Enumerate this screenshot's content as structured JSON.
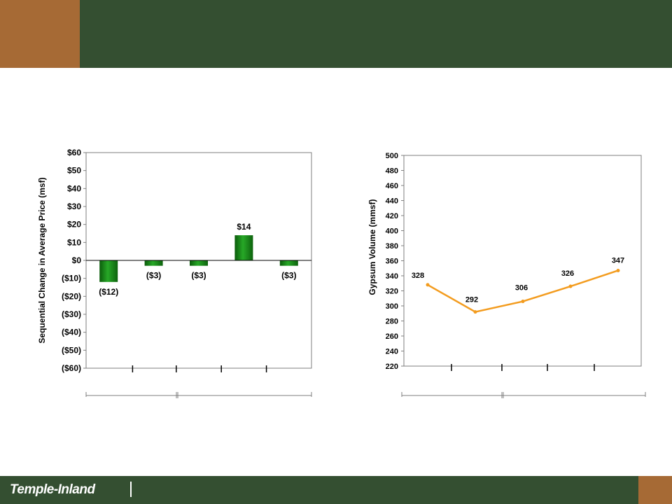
{
  "brand": {
    "logo_text": "Temple-Inland",
    "colors": {
      "header": "#344f31",
      "accent": "#a66a35"
    }
  },
  "chart_data": [
    {
      "type": "bar",
      "ylabel": "Sequential Change in Average Price (msf)",
      "ylim": [
        -60,
        60
      ],
      "yticks": [
        60,
        50,
        40,
        30,
        20,
        10,
        0,
        -10,
        -20,
        -30,
        -40,
        -50,
        -60
      ],
      "ytick_labels": [
        "$60",
        "$50",
        "$40",
        "$30",
        "$20",
        "$10",
        "$0",
        "($10)",
        "($20)",
        "($30)",
        "($40)",
        "($50)",
        "($60)"
      ],
      "values": [
        -12,
        -3,
        -3,
        14,
        -3
      ],
      "data_labels": [
        "($12)",
        "($3)",
        "($3)",
        "$14",
        "($3)"
      ],
      "grid": false,
      "color": "#1e8a1e"
    },
    {
      "type": "line",
      "ylabel": "Gypsum  Volume (mmsf)",
      "ylim": [
        220,
        500
      ],
      "yticks": [
        500,
        480,
        460,
        440,
        420,
        400,
        380,
        360,
        340,
        320,
        300,
        280,
        260,
        240,
        220
      ],
      "values": [
        328,
        292,
        306,
        326,
        347
      ],
      "data_labels": [
        "328",
        "292",
        "306",
        "326",
        "347"
      ],
      "grid": false,
      "color": "#f39c1f"
    }
  ]
}
